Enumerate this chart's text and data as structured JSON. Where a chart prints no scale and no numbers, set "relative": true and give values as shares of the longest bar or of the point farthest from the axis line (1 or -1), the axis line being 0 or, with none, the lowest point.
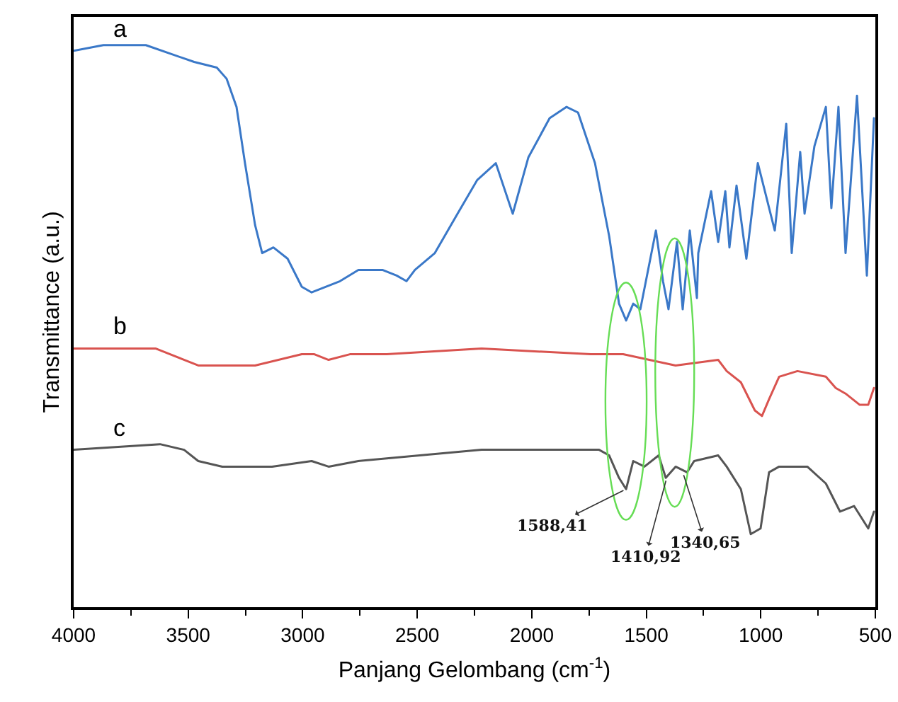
{
  "chart_data": {
    "type": "line",
    "relative": true,
    "xlabel": "Panjang Gelombang (cm$^{-1}$)",
    "ylabel": "Transmittance (a.u.)",
    "xlim": [
      4000,
      500
    ],
    "xticks": [
      4000,
      3500,
      3000,
      2500,
      2000,
      1500,
      1000,
      500
    ],
    "legend": false,
    "grid": false,
    "marker": "none",
    "line_style": "solid",
    "series": [
      {
        "name": "a",
        "color": "#3a78c8",
        "x": [
          4000,
          3870,
          3685,
          3474,
          3375,
          3332,
          3289,
          3252,
          3208,
          3177,
          3128,
          3066,
          3004,
          2961,
          2837,
          2757,
          2652,
          2590,
          2547,
          2510,
          2423,
          2324,
          2238,
          2157,
          2083,
          2015,
          1922,
          1848,
          1798,
          1724,
          1662,
          1619,
          1588,
          1557,
          1526,
          1458,
          1427,
          1403,
          1366,
          1341,
          1310,
          1279,
          1273,
          1217,
          1186,
          1155,
          1137,
          1106,
          1063,
          1013,
          939,
          889,
          865,
          828,
          809,
          766,
          716,
          692,
          661,
          630,
          580,
          537,
          506
        ],
        "values": [
          0.99,
          1.0,
          1.0,
          0.97,
          0.96,
          0.94,
          0.89,
          0.79,
          0.68,
          0.63,
          0.64,
          0.62,
          0.57,
          0.56,
          0.58,
          0.6,
          0.6,
          0.59,
          0.58,
          0.6,
          0.63,
          0.7,
          0.76,
          0.79,
          0.7,
          0.8,
          0.87,
          0.89,
          0.88,
          0.79,
          0.66,
          0.54,
          0.51,
          0.54,
          0.53,
          0.67,
          0.58,
          0.53,
          0.65,
          0.53,
          0.67,
          0.55,
          0.63,
          0.74,
          0.65,
          0.74,
          0.64,
          0.75,
          0.62,
          0.79,
          0.67,
          0.86,
          0.63,
          0.81,
          0.7,
          0.82,
          0.89,
          0.71,
          0.89,
          0.63,
          0.91,
          0.59,
          0.87
        ]
      },
      {
        "name": "b",
        "color": "#d9534f",
        "x": [
          4000,
          3641,
          3456,
          3332,
          3208,
          3004,
          2949,
          2887,
          2794,
          2633,
          2219,
          1743,
          1662,
          1601,
          1372,
          1186,
          1149,
          1087,
          1026,
          995,
          964,
          920,
          840,
          716,
          673,
          630,
          568,
          531,
          506
        ],
        "values": [
          0.46,
          0.46,
          0.43,
          0.43,
          0.43,
          0.45,
          0.45,
          0.44,
          0.45,
          0.45,
          0.46,
          0.45,
          0.45,
          0.45,
          0.43,
          0.44,
          0.42,
          0.4,
          0.35,
          0.34,
          0.37,
          0.41,
          0.42,
          0.41,
          0.39,
          0.38,
          0.36,
          0.36,
          0.39
        ]
      },
      {
        "name": "c",
        "color": "#555555",
        "x": [
          4000,
          3623,
          3518,
          3456,
          3351,
          3208,
          3134,
          2961,
          2887,
          2757,
          2219,
          1706,
          1662,
          1619,
          1588,
          1557,
          1508,
          1446,
          1415,
          1372,
          1322,
          1291,
          1186,
          1149,
          1087,
          1044,
          1001,
          964,
          920,
          797,
          716,
          654,
          593,
          531,
          506
        ],
        "values": [
          0.28,
          0.29,
          0.28,
          0.26,
          0.25,
          0.25,
          0.25,
          0.26,
          0.25,
          0.26,
          0.28,
          0.28,
          0.27,
          0.23,
          0.21,
          0.26,
          0.25,
          0.27,
          0.23,
          0.25,
          0.24,
          0.26,
          0.27,
          0.25,
          0.21,
          0.13,
          0.14,
          0.24,
          0.25,
          0.25,
          0.22,
          0.17,
          0.18,
          0.14,
          0.17
        ]
      }
    ],
    "annotations": [
      {
        "text": "1588,41",
        "x": 1588.41,
        "y": 0.21
      },
      {
        "text": "1410,92",
        "x": 1410.92,
        "y": 0.23
      },
      {
        "text": "1340,65",
        "x": 1340.65,
        "y": 0.24
      }
    ]
  }
}
